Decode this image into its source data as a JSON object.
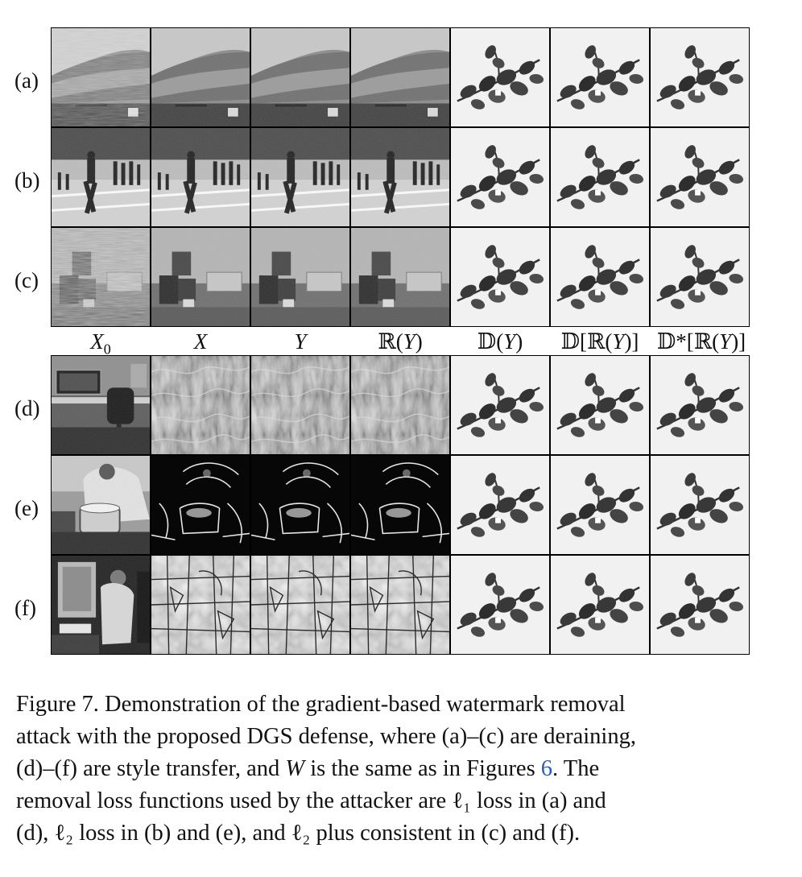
{
  "rows_top": [
    {
      "label": "(a)",
      "columns": [
        "photo-deraining-cliff",
        "photo-deraining-cliff",
        "photo-deraining-cliff",
        "photo-deraining-cliff",
        "watermark-leaves",
        "watermark-leaves",
        "watermark-leaves"
      ]
    },
    {
      "label": "(b)",
      "columns": [
        "photo-athletes",
        "photo-athletes",
        "photo-athletes",
        "photo-athletes",
        "watermark-leaves",
        "watermark-leaves",
        "watermark-leaves"
      ]
    },
    {
      "label": "(c)",
      "columns": [
        "photo-room-rain",
        "photo-room",
        "photo-room",
        "photo-room",
        "watermark-leaves",
        "watermark-leaves",
        "watermark-leaves"
      ]
    }
  ],
  "column_labels": [
    "X0",
    "X",
    "Y",
    "ℝ(Y)",
    "𝔻(Y)",
    "𝔻[ℝ(Y)]",
    "𝔻*[ℝ(Y)]"
  ],
  "rows_bottom": [
    {
      "label": "(d)",
      "columns": [
        "photo-desk",
        "style-texture",
        "style-texture",
        "style-texture",
        "watermark-leaves",
        "watermark-leaves",
        "watermark-leaves"
      ]
    },
    {
      "label": "(e)",
      "columns": [
        "photo-cook",
        "style-edges",
        "style-edges",
        "style-edges",
        "watermark-leaves",
        "watermark-leaves",
        "watermark-leaves"
      ]
    },
    {
      "label": "(f)",
      "columns": [
        "photo-mirror",
        "style-cubist",
        "style-cubist",
        "style-cubist",
        "watermark-leaves",
        "watermark-leaves",
        "watermark-leaves"
      ]
    }
  ],
  "caption": {
    "line1": "Figure 7. Demonstration of the gradient-based watermark removal",
    "line2": "attack with the proposed DGS defense, where (a)–(c) are deraining,",
    "line3_a": "(d)–(f) are style transfer, and ",
    "line3_w": "W",
    "line3_b": " is the same as in Figures ",
    "line3_ref": "6",
    "line3_c": ". The",
    "line4": "removal loss functions used by the attacker are ℓ₁ loss in (a) and",
    "line5": "(d), ℓ₂ loss in (b) and (e), and ℓ₂ plus consistent in (c) and (f)."
  }
}
